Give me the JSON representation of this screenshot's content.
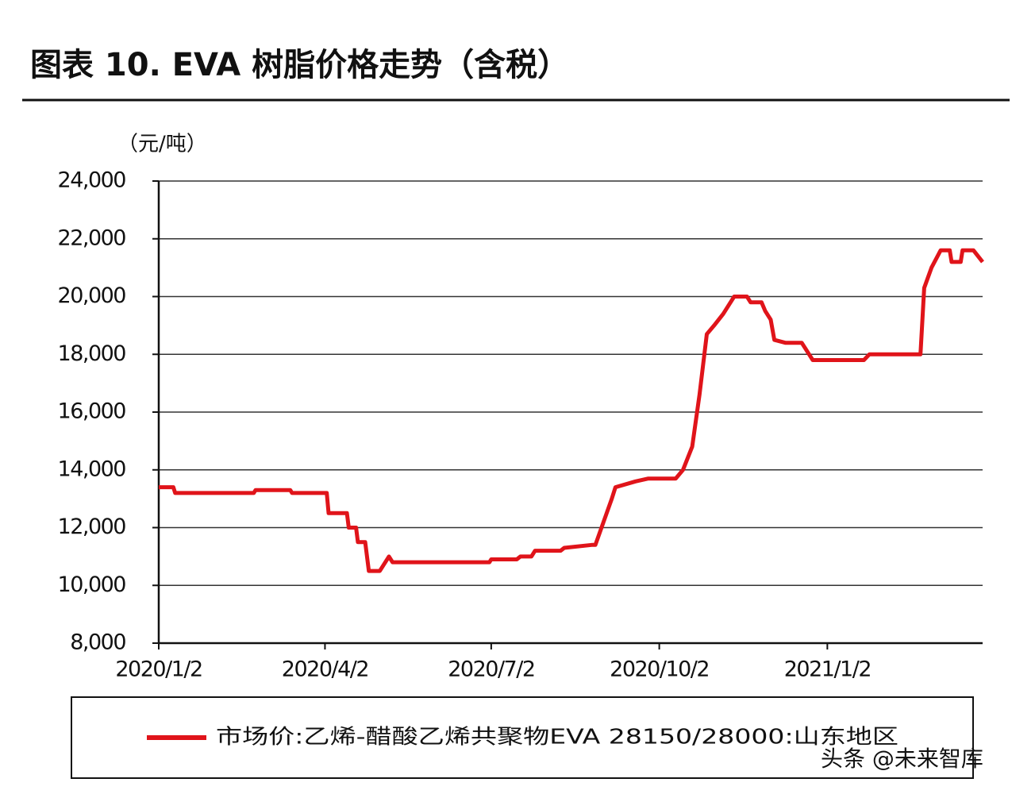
{
  "chart_data": {
    "type": "line",
    "title": "图表 10. EVA 树脂价格走势（含税）",
    "y_label": "（元/吨）",
    "watermark": "头条 @未来智库",
    "x": [
      "2020/1/2",
      "2020/1/10",
      "2020/1/11",
      "2020/2/23",
      "2020/2/24",
      "2020/3/14",
      "2020/3/15",
      "2020/4/3",
      "2020/4/4",
      "2020/4/14",
      "2020/4/15",
      "2020/4/19",
      "2020/4/20",
      "2020/4/24",
      "2020/4/26",
      "2020/5/2",
      "2020/5/7",
      "2020/5/9",
      "2020/7/1",
      "2020/7/2",
      "2020/7/16",
      "2020/7/18",
      "2020/7/24",
      "2020/7/26",
      "2020/8/9",
      "2020/8/11",
      "2020/8/26",
      "2020/8/28",
      "2020/9/6",
      "2020/9/8",
      "2020/9/19",
      "2020/9/26",
      "2020/10/11",
      "2020/10/15",
      "2020/10/20",
      "2020/10/24",
      "2020/10/28",
      "2020/11/1",
      "2020/11/6",
      "2020/11/12",
      "2020/11/19",
      "2020/11/21",
      "2020/11/27",
      "2020/11/29",
      "2020/12/2",
      "2020/12/4",
      "2020/12/10",
      "2020/12/19",
      "2020/12/23",
      "2020/12/25",
      "2021/1/22",
      "2021/1/25",
      "2021/2/22",
      "2021/2/24",
      "2021/2/28",
      "2021/3/5",
      "2021/3/10",
      "2021/3/11",
      "2021/3/16",
      "2021/3/17",
      "2021/3/23",
      "2021/3/28"
    ],
    "series": [
      {
        "name": "市场价:乙烯-醋酸乙烯共聚物EVA 28150/28000:山东地区",
        "color": "#e0141a",
        "values": [
          13400,
          13400,
          13200,
          13200,
          13300,
          13300,
          13200,
          13200,
          12500,
          12500,
          12000,
          12000,
          11500,
          11500,
          10500,
          10500,
          11000,
          10800,
          10800,
          10900,
          10900,
          11000,
          11000,
          11200,
          11200,
          11300,
          11400,
          11400,
          13000,
          13400,
          13600,
          13700,
          13700,
          14000,
          14800,
          16600,
          18700,
          19000,
          19400,
          20000,
          20000,
          19800,
          19800,
          19500,
          19200,
          18500,
          18400,
          18400,
          18000,
          17800,
          17800,
          18000,
          18000,
          20300,
          21000,
          21600,
          21600,
          21200,
          21200,
          21600,
          21600,
          21200
        ]
      }
    ],
    "xlim": [
      "2020/1/2",
      "2021/3/28"
    ],
    "xticks": [
      "2020/1/2",
      "2020/4/2",
      "2020/7/2",
      "2020/10/2",
      "2021/1/2"
    ],
    "ylim": [
      8000,
      24000
    ],
    "yticks": [
      {
        "value": 8000,
        "label": "8,000"
      },
      {
        "value": 10000,
        "label": "10,000"
      },
      {
        "value": 12000,
        "label": "12,000"
      },
      {
        "value": 14000,
        "label": "14,000"
      },
      {
        "value": 16000,
        "label": "16,000"
      },
      {
        "value": 18000,
        "label": "18,000"
      },
      {
        "value": 20000,
        "label": "20,000"
      },
      {
        "value": 22000,
        "label": "22,000"
      },
      {
        "value": 24000,
        "label": "24,000"
      }
    ],
    "grid": true
  }
}
